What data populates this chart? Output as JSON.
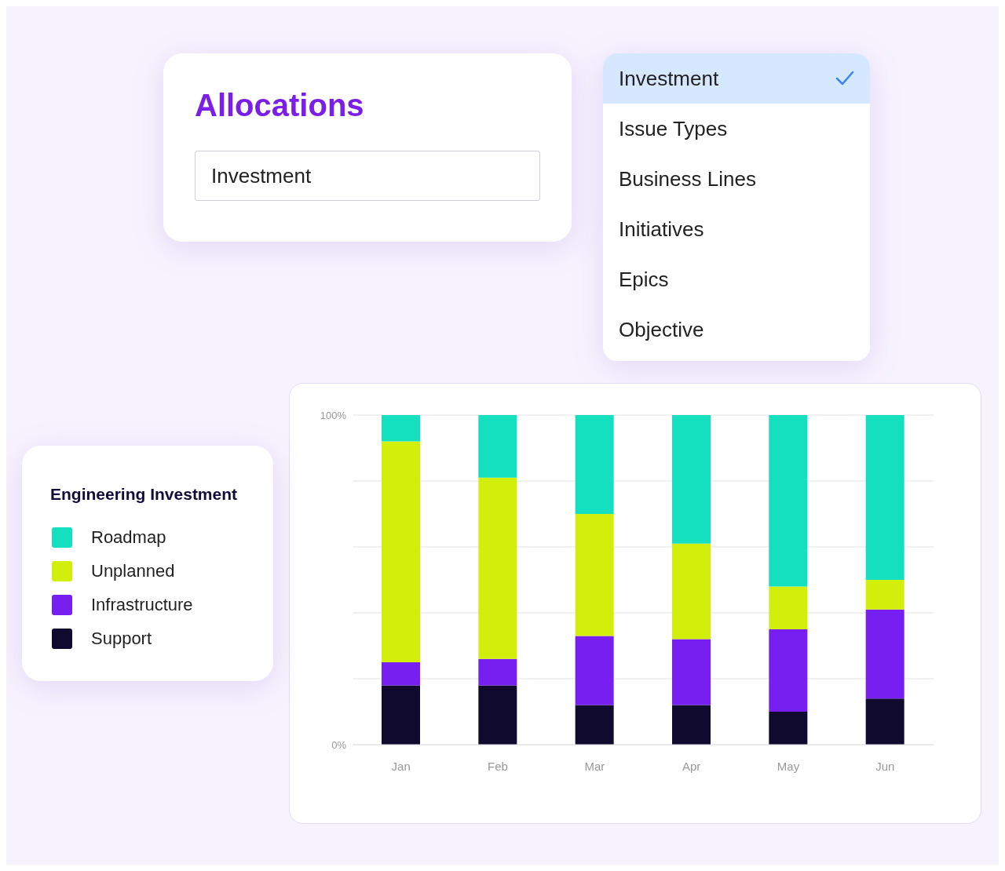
{
  "chart_data": {
    "type": "bar",
    "title": "Allocations",
    "legend_title": "Engineering Investment",
    "stacked": true,
    "grid": "y",
    "legend": "left",
    "categories": [
      "Jan",
      "Feb",
      "Mar",
      "Apr",
      "May",
      "Jun"
    ],
    "series": [
      {
        "name": "Support",
        "color": "#0f0a2e",
        "values": [
          18,
          18,
          12,
          12,
          10,
          14
        ]
      },
      {
        "name": "Infrastructure",
        "color": "#771ef0",
        "values": [
          7,
          8,
          21,
          20,
          25,
          27
        ]
      },
      {
        "name": "Unplanned",
        "color": "#d1ef0b",
        "values": [
          67,
          55,
          37,
          29,
          13,
          9
        ]
      },
      {
        "name": "Roadmap",
        "color": "#14e0bf",
        "values": [
          8,
          19,
          30,
          39,
          52,
          50
        ]
      }
    ],
    "ylim": [
      0,
      100
    ],
    "yticks": [
      {
        "value": 0,
        "label": "0%"
      },
      {
        "value": 20,
        "label": null
      },
      {
        "value": 40,
        "label": null
      },
      {
        "value": 60,
        "label": null
      },
      {
        "value": 80,
        "label": null
      },
      {
        "value": 100,
        "label": "100%"
      }
    ],
    "annotations": [
      "Investment",
      "Investment",
      "Issue Types",
      "Business Lines",
      "Initiatives",
      "Epics",
      "Objective"
    ]
  }
}
